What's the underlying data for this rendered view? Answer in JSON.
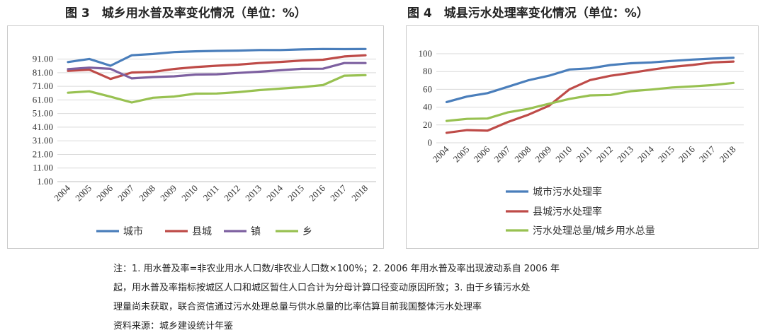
{
  "charts": {
    "left": {
      "title": "图 3　城乡用水普及率变化情况（单位：%）"
    },
    "right": {
      "title": "图 4　城县污水处理率变化情况（单位：%）"
    }
  },
  "notes": [
    "注：1. 用水普及率=非农业用水人口数/非农业人口数×100%；2. 2006 年用水普及率出现波动系自 2006 年",
    "起，用水普及率指标按城区人口和城区暂住人口合计为分母计算口径变动原因所致；3. 由于乡镇污水处",
    "理量尚未获取，联合资信通过污水处理总量与供水总量的比率估算目前我国整体污水处理率",
    "资料来源：城乡建设统计年鉴"
  ],
  "chart_data": [
    {
      "type": "line",
      "title": "图 3　城乡用水普及率变化情况（单位：%）",
      "xlabel": "",
      "ylabel": "",
      "x": [
        "2004",
        "2005",
        "2006",
        "2007",
        "2008",
        "2009",
        "2010",
        "2011",
        "2012",
        "2013",
        "2014",
        "2015",
        "2016",
        "2017",
        "2018"
      ],
      "y_ticks": [
        "91.00",
        "81.00",
        "71.00",
        "61.00",
        "51.00",
        "41.00",
        "31.00",
        "21.00",
        "11.00",
        "1.00"
      ],
      "ylim": [
        1,
        97
      ],
      "grid": true,
      "legend": "bottom",
      "series": [
        {
          "name": "城市",
          "color": "#4a7ebb",
          "values": [
            88.8,
            91.1,
            86.1,
            93.8,
            94.7,
            96.1,
            96.7,
            97.0,
            97.2,
            97.6,
            97.6,
            98.1,
            98.4,
            98.3,
            98.4
          ]
        },
        {
          "name": "县城",
          "color": "#be4b48",
          "values": [
            82.3,
            83.2,
            76.4,
            81.1,
            81.6,
            83.7,
            85.1,
            86.1,
            86.9,
            88.1,
            88.9,
            89.9,
            90.5,
            92.9,
            93.8
          ]
        },
        {
          "name": "镇",
          "color": "#7d60a0",
          "values": [
            83.6,
            84.7,
            83.8,
            76.8,
            77.8,
            78.3,
            79.6,
            79.8,
            80.8,
            81.7,
            82.8,
            83.8,
            83.9,
            88.1,
            88.1
          ]
        },
        {
          "name": "乡",
          "color": "#98c151",
          "values": [
            66.3,
            67.3,
            63.4,
            59.1,
            62.6,
            63.5,
            65.6,
            65.7,
            66.7,
            68.2,
            69.3,
            70.4,
            71.9,
            78.8,
            79.2
          ]
        }
      ]
    },
    {
      "type": "line",
      "title": "图 4　城县污水处理率变化情况（单位：%）",
      "xlabel": "",
      "ylabel": "",
      "x": [
        "2004",
        "2005",
        "2006",
        "2007",
        "2008",
        "2009",
        "2010",
        "2011",
        "2012",
        "2013",
        "2014",
        "2015",
        "2016",
        "2017",
        "2018"
      ],
      "y_ticks": [
        "100",
        "80",
        "60",
        "40",
        "20",
        "0"
      ],
      "ylim": [
        0,
        100
      ],
      "grid": true,
      "legend": "bottom",
      "series": [
        {
          "name": "城市污水处理率",
          "color": "#4a7ebb",
          "values": [
            45.7,
            51.9,
            55.7,
            62.9,
            70.2,
            75.3,
            82.3,
            83.6,
            87.3,
            89.3,
            90.2,
            91.9,
            93.4,
            94.5,
            95.5
          ]
        },
        {
          "name": "县城污水处理率",
          "color": "#be4b48",
          "values": [
            11.2,
            14.2,
            13.6,
            23.4,
            31.6,
            41.6,
            60.1,
            70.4,
            75.2,
            78.5,
            82.1,
            85.2,
            87.4,
            90.2,
            91.2
          ]
        },
        {
          "name": "污水处理总量/城乡用水总量",
          "color": "#98c151",
          "values": [
            24.5,
            26.8,
            27.2,
            34.2,
            38.2,
            43.8,
            49.3,
            53.2,
            53.7,
            57.9,
            59.8,
            62.1,
            63.3,
            64.8,
            67.2
          ]
        }
      ]
    }
  ]
}
